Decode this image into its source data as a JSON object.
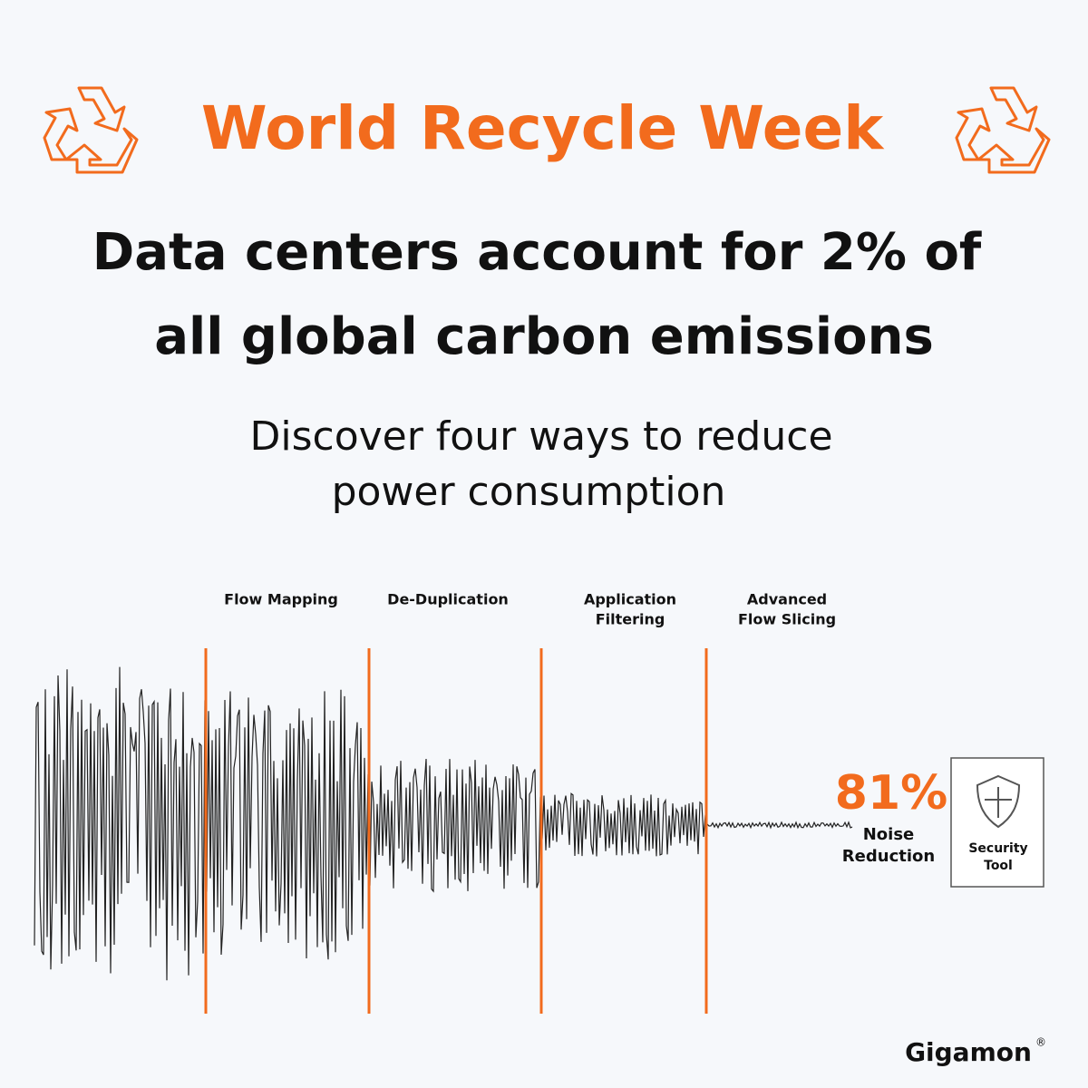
{
  "header": {
    "title": "World Recycle Week"
  },
  "headline": {
    "lines": [
      "Data centers account for 2% of",
      "all global carbon emissions"
    ]
  },
  "subtitle": {
    "lines": [
      "Discover four ways to reduce",
      "power consumption"
    ]
  },
  "stages": [
    {
      "lines": [
        "Flow Mapping"
      ]
    },
    {
      "lines": [
        "De-Duplication"
      ]
    },
    {
      "lines": [
        "Application",
        "Filtering"
      ]
    },
    {
      "lines": [
        "Advanced",
        "Flow Slicing"
      ]
    }
  ],
  "result": {
    "value_label": "81%",
    "lines": [
      "Noise",
      "Reduction"
    ]
  },
  "tool": {
    "lines": [
      "Security",
      "Tool"
    ]
  },
  "brand": {
    "name": "Gigamon",
    "mark": "®"
  }
}
